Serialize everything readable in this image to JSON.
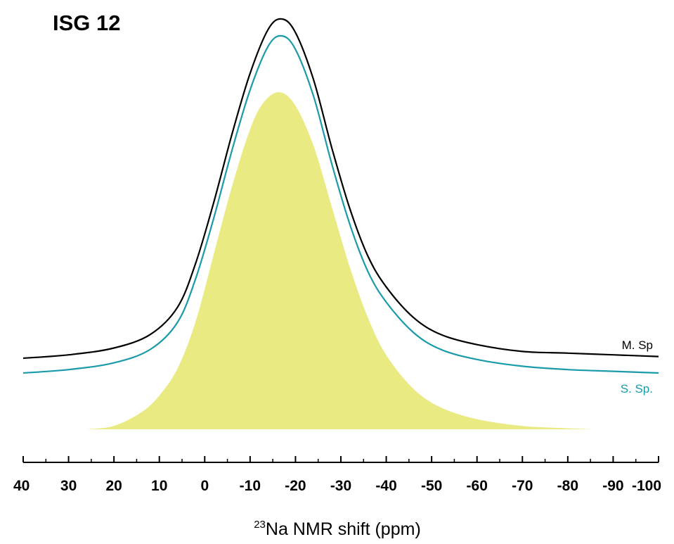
{
  "chart_data": {
    "type": "line",
    "title": "ISG 12",
    "xlabel_sup": "23",
    "xlabel_main": "Na NMR shift (ppm)",
    "xlim": [
      40,
      -100
    ],
    "x_ticks": [
      40,
      30,
      20,
      10,
      0,
      -10,
      -20,
      -30,
      -40,
      -50,
      -60,
      -70,
      -80,
      -90,
      -100
    ],
    "grid": false,
    "colors": {
      "measured": "#000000",
      "simulated": "#1a9aaa",
      "component": "#e9ea82"
    },
    "series": [
      {
        "name": "M. Sp",
        "x": [
          40,
          30,
          20,
          12,
          6,
          2,
          -2,
          -6,
          -10,
          -14,
          -17,
          -20,
          -24,
          -28,
          -32,
          -36,
          -40,
          -46,
          -52,
          -60,
          -70,
          -80,
          -90,
          -100
        ],
        "y": [
          0.0,
          0.01,
          0.03,
          0.07,
          0.15,
          0.28,
          0.46,
          0.66,
          0.84,
          0.97,
          1.0,
          0.96,
          0.82,
          0.62,
          0.44,
          0.3,
          0.21,
          0.12,
          0.07,
          0.04,
          0.02,
          0.015,
          0.01,
          0.005
        ]
      },
      {
        "name": "S. Sp.",
        "x": [
          40,
          30,
          20,
          12,
          6,
          2,
          -2,
          -6,
          -10,
          -14,
          -17,
          -20,
          -24,
          -28,
          -32,
          -36,
          -40,
          -46,
          -52,
          -60,
          -70,
          -80,
          -90,
          -100
        ],
        "y": [
          0.0,
          0.01,
          0.03,
          0.07,
          0.15,
          0.28,
          0.46,
          0.66,
          0.84,
          0.97,
          1.0,
          0.96,
          0.82,
          0.62,
          0.44,
          0.3,
          0.21,
          0.12,
          0.07,
          0.04,
          0.02,
          0.01,
          0.005,
          0.0
        ]
      },
      {
        "name": "",
        "fill": true,
        "x": [
          26,
          20,
          14,
          10,
          6,
          2,
          -2,
          -6,
          -10,
          -13,
          -16.5,
          -20,
          -24,
          -28,
          -32,
          -36,
          -40,
          -46,
          -52,
          -60,
          -70,
          -80,
          -86
        ],
        "y": [
          0.0,
          0.01,
          0.05,
          0.1,
          0.18,
          0.32,
          0.52,
          0.72,
          0.89,
          0.97,
          1.0,
          0.96,
          0.84,
          0.66,
          0.48,
          0.33,
          0.22,
          0.12,
          0.065,
          0.03,
          0.01,
          0.003,
          0.0
        ]
      }
    ]
  }
}
